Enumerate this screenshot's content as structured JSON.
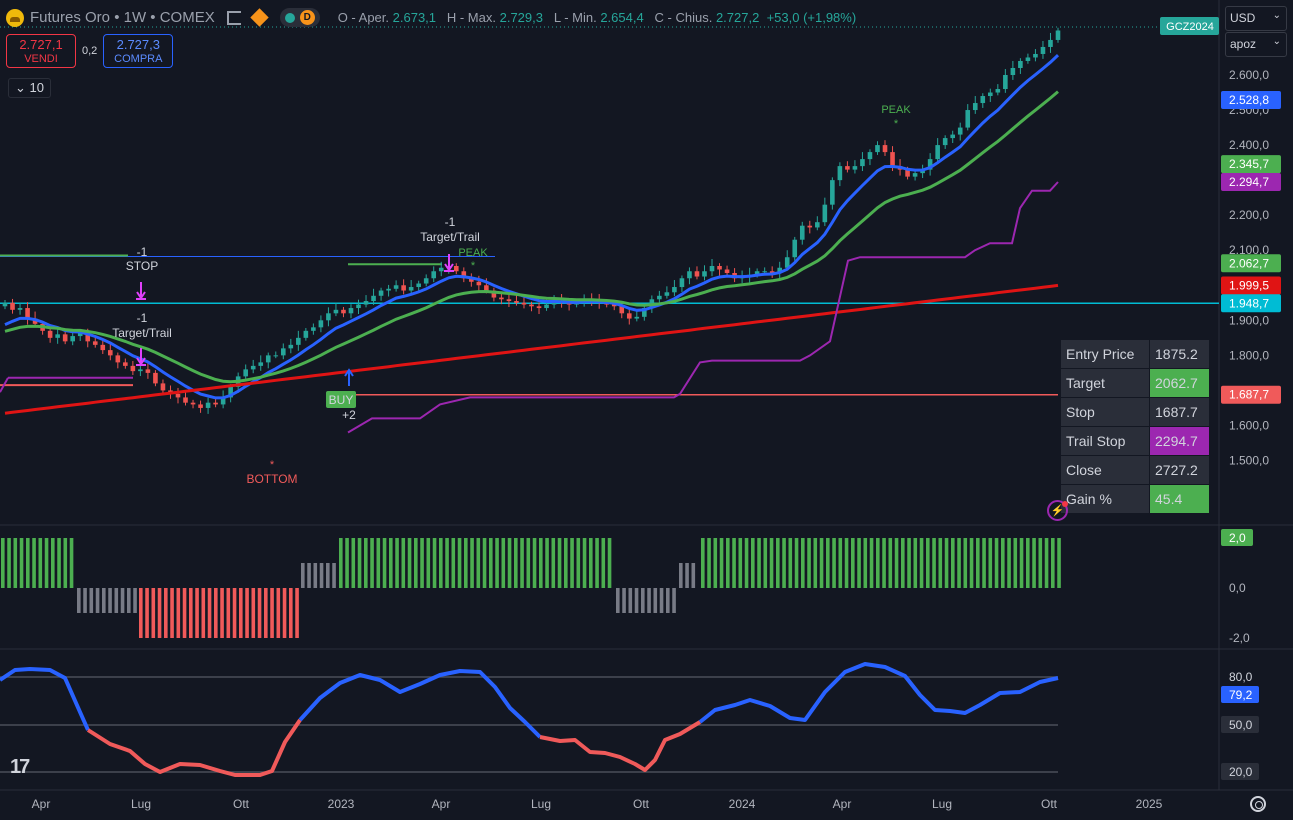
{
  "header": {
    "title": "Futures Oro • 1W • COMEX",
    "badge": "D",
    "ohlc": {
      "open_label": "O - Aper.",
      "open": "2.673,1",
      "high_label": "H - Max.",
      "high": "2.729,3",
      "low_label": "L - Min.",
      "low": "2.654,4",
      "close_label": "C - Chius.",
      "close": "2.727,2",
      "change": "+53,0 (+1,98%)"
    }
  },
  "trading": {
    "sell_price": "2.727,1",
    "sell_label": "VENDI",
    "spread": "0,2",
    "buy_price": "2.727,3",
    "buy_label": "COMPRA",
    "quantity": "10"
  },
  "controls": {
    "currency": "USD",
    "scale_mode": "apoz"
  },
  "contract_badge": "GCZ2024",
  "colors": {
    "background": "#131722",
    "up": "#26a69a",
    "down": "#ef5350",
    "ema_fast": "#2962ff",
    "ema_mid": "#4caf50",
    "ema_slow": "#e01414",
    "trail": "#9c27b0",
    "level": "#00bcd4"
  },
  "price_axis": {
    "ticks": [
      "2.600,0",
      "2.500,0",
      "2.400,0",
      "2.300,0",
      "2.200,0",
      "2.100,0",
      "1.900,0",
      "1.800,0",
      "1.700,0",
      "1.600,0",
      "1.500,0"
    ],
    "labels": [
      {
        "text": "2.528,8",
        "color": "#2962ff"
      },
      {
        "text": "2.345,7",
        "color": "#4caf50"
      },
      {
        "text": "2.294,7",
        "color": "#9c27b0"
      },
      {
        "text": "2.062,7",
        "color": "#4caf50"
      },
      {
        "text": "1.999,5",
        "color": "#e01414"
      },
      {
        "text": "1.948,7",
        "color": "#00bcd4"
      },
      {
        "text": "1.687,7",
        "color": "#f05a5a"
      }
    ]
  },
  "hist_axis": {
    "ticks": [
      "0,0",
      "-2,0"
    ],
    "label": "2,0"
  },
  "osc_axis": {
    "ticks": [
      "80,0",
      "50,0",
      "20,0"
    ],
    "label": "79,2"
  },
  "time_axis": [
    "Apr",
    "Lug",
    "Ott",
    "2023",
    "Apr",
    "Lug",
    "Ott",
    "2024",
    "Apr",
    "Lug",
    "Ott",
    "2025"
  ],
  "annotations": {
    "stop_qty": "-1",
    "stop": "STOP",
    "target_qty_1": "-1",
    "target_1": "Target/Trail",
    "target_qty_2": "-1",
    "target_2": "Target/Trail",
    "peak_1": "PEAK",
    "peak_2": "PEAK",
    "bottom": "BOTTOM",
    "buy": "BUY",
    "buy_qty": "+2"
  },
  "stats_table": [
    {
      "label": "Entry Price",
      "value": "1875.2",
      "color": "#2a2e39"
    },
    {
      "label": "Target",
      "value": "2062.7",
      "color": "#4caf50"
    },
    {
      "label": "Stop",
      "value": "1687.7",
      "color": "#2a2e39"
    },
    {
      "label": "Trail Stop",
      "value": "2294.7",
      "color": "#9c27b0"
    },
    {
      "label": "Close",
      "value": "2727.2",
      "color": "#2a2e39"
    },
    {
      "label": "Gain %",
      "value": "45.4",
      "color": "#4caf50"
    }
  ],
  "chart_data": {
    "type": "candlestick",
    "y_range": [
      1450,
      2760
    ],
    "x_start": "2022-03",
    "x_end": "2024-10",
    "close_series": [
      1950,
      1930,
      1935,
      1905,
      1890,
      1870,
      1850,
      1860,
      1840,
      1855,
      1865,
      1840,
      1830,
      1815,
      1800,
      1780,
      1770,
      1755,
      1760,
      1750,
      1720,
      1700,
      1690,
      1680,
      1665,
      1660,
      1650,
      1665,
      1660,
      1680,
      1710,
      1740,
      1760,
      1770,
      1780,
      1800,
      1800,
      1820,
      1830,
      1850,
      1870,
      1880,
      1900,
      1920,
      1930,
      1920,
      1935,
      1945,
      1955,
      1970,
      1985,
      1990,
      2000,
      1985,
      1995,
      2005,
      2020,
      2040,
      2050,
      2055,
      2040,
      2020,
      2010,
      2000,
      1985,
      1965,
      1960,
      1955,
      1950,
      1945,
      1940,
      1935,
      1945,
      1955,
      1950,
      1945,
      1950,
      1960,
      1955,
      1950,
      1945,
      1940,
      1920,
      1905,
      1910,
      1935,
      1960,
      1970,
      1980,
      1995,
      2020,
      2040,
      2025,
      2040,
      2055,
      2045,
      2035,
      2020,
      2025,
      2030,
      2040,
      2040,
      2035,
      2050,
      2080,
      2130,
      2170,
      2165,
      2180,
      2230,
      2300,
      2340,
      2330,
      2340,
      2360,
      2380,
      2400,
      2380,
      2340,
      2330,
      2310,
      2320,
      2330,
      2360,
      2400,
      2420,
      2430,
      2450,
      2500,
      2520,
      2540,
      2550,
      2560,
      2600,
      2620,
      2640,
      2650,
      2660,
      2680,
      2700,
      2727
    ],
    "ema_fast_last": 2528.8,
    "ema_mid_last": 2345.7,
    "ema_slow_last": 1999.5,
    "trail_stop_last": 2294.7,
    "level_line": 1948.7,
    "target_level": 2062.7,
    "stop_level": 1687.7,
    "histogram_last": 2.0,
    "oscillator_last": 79.2,
    "oscillator_levels": [
      80,
      50,
      20
    ]
  }
}
